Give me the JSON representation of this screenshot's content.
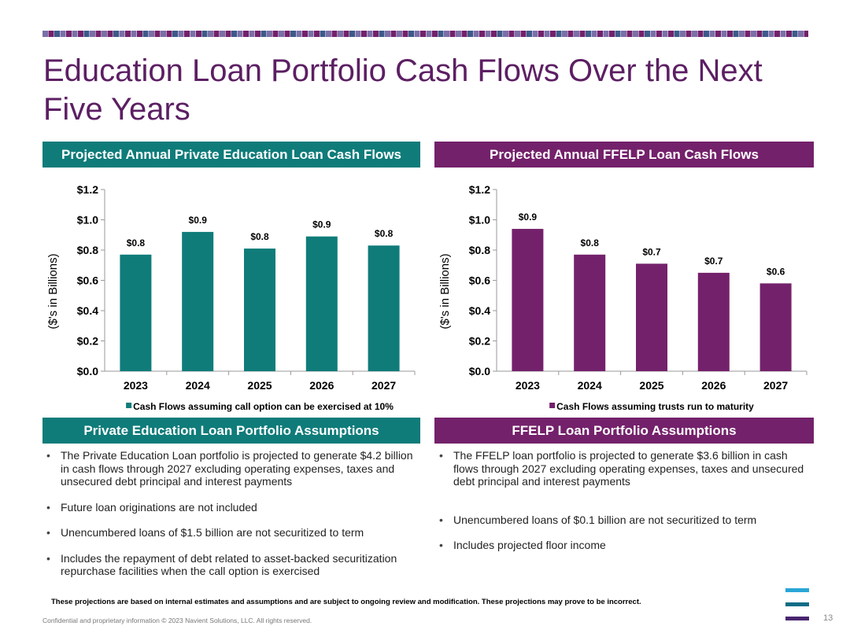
{
  "title": "Education Loan Portfolio Cash Flows Over the Next Five Years",
  "colors": {
    "title": "#5c1f63",
    "teal": "#0f7c7a",
    "purple": "#74216b",
    "stripe_light": "#7b6fa8",
    "stripe_mid": "#3d5a8a"
  },
  "panels": {
    "left_chart_header": "Projected Annual Private Education Loan Cash Flows",
    "right_chart_header": "Projected Annual FFELP Loan Cash Flows",
    "left_assumptions_header": "Private Education Loan Portfolio Assumptions",
    "right_assumptions_header": "FFELP Loan Portfolio Assumptions"
  },
  "chart_data": [
    {
      "type": "bar",
      "categories": [
        "2023",
        "2024",
        "2025",
        "2026",
        "2027"
      ],
      "series": [
        {
          "name": "Cash Flows assuming call option can be exercised at 10%",
          "values": [
            0.77,
            0.92,
            0.81,
            0.89,
            0.83
          ],
          "labels": [
            "$0.8",
            "$0.9",
            "$0.8",
            "$0.9",
            "$0.8"
          ]
        }
      ],
      "ylabel": "($'s in Billions)",
      "ylim": [
        0,
        1.2
      ],
      "yticks": [
        "$0.0",
        "$0.2",
        "$0.4",
        "$0.6",
        "$0.8",
        "$1.0",
        "$1.2"
      ],
      "grid": false,
      "legend": "bottom",
      "color": "#0f7c7a"
    },
    {
      "type": "bar",
      "categories": [
        "2023",
        "2024",
        "2025",
        "2026",
        "2027"
      ],
      "series": [
        {
          "name": "Cash Flows assuming trusts run to maturity",
          "values": [
            0.94,
            0.77,
            0.71,
            0.65,
            0.58
          ],
          "labels": [
            "$0.9",
            "$0.8",
            "$0.7",
            "$0.7",
            "$0.6"
          ]
        }
      ],
      "ylabel": "($'s in Billions)",
      "ylim": [
        0,
        1.2
      ],
      "yticks": [
        "$0.0",
        "$0.2",
        "$0.4",
        "$0.6",
        "$0.8",
        "$1.0",
        "$1.2"
      ],
      "grid": false,
      "legend": "bottom",
      "color": "#74216b"
    }
  ],
  "left_bullets": [
    "The Private Education Loan portfolio is projected to generate $4.2 billion in cash flows through 2027 excluding operating expenses, taxes and unsecured debt principal and interest payments",
    "Future loan originations are not included",
    "Unencumbered loans of $1.5 billion are not securitized to term",
    "Includes the repayment of debt related to asset-backed securitization repurchase facilities when the call option is exercised"
  ],
  "right_bullets": [
    "The FFELP loan portfolio is projected to generate $3.6 billion in cash flows through 2027 excluding operating expenses, taxes and unsecured debt principal and interest payments",
    "Unencumbered loans of $0.1 billion are not securitized to term",
    "Includes projected floor income"
  ],
  "disclaimer": "These projections are based on internal estimates and assumptions and are subject to ongoing review and modification. These projections may prove to be incorrect.",
  "footer": "Confidential and proprietary information © 2023 Navient Solutions, LLC. All rights reserved.",
  "page_number": "13"
}
